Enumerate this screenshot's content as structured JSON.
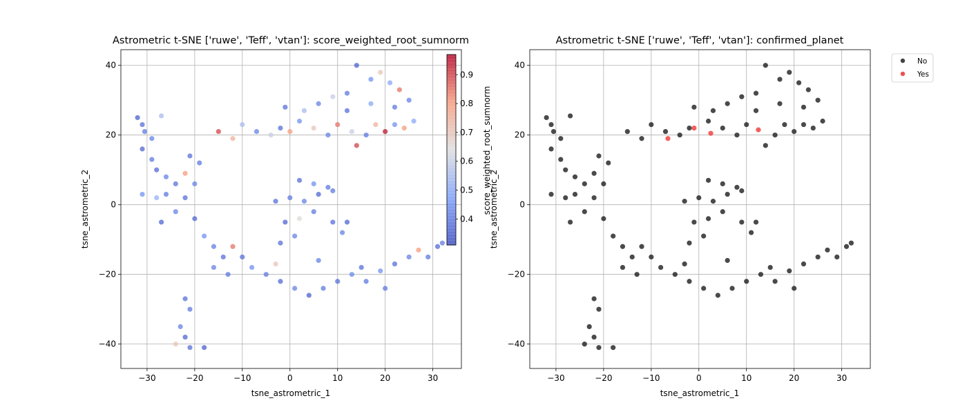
{
  "chart_data": [
    {
      "type": "scatter",
      "title": "Astrometric t-SNE ['ruwe', 'Teff', 'vtan']: score_weighted_root_sumnorm",
      "xlabel": "tsne_astrometric_1",
      "ylabel": "tsne_astrometric_2",
      "xlim": [
        -35.5,
        36
      ],
      "ylim": [
        -47,
        44.5
      ],
      "xticks": [
        -30,
        -20,
        -10,
        0,
        10,
        20,
        30
      ],
      "yticks": [
        -40,
        -20,
        0,
        20,
        40
      ],
      "grid": true,
      "colormap": "coolwarm",
      "color_label": "score_weighted_root_sumnorm",
      "color_range": [
        0.31,
        0.97
      ],
      "colorbar_ticks": [
        0.4,
        0.5,
        0.6,
        0.7,
        0.8,
        0.9
      ],
      "points": [
        [
          -32,
          25,
          0.35
        ],
        [
          -31,
          23,
          0.38
        ],
        [
          -30.5,
          21,
          0.4
        ],
        [
          -29,
          19,
          0.42
        ],
        [
          -27,
          25.5,
          0.55
        ],
        [
          -31,
          16,
          0.36
        ],
        [
          -29,
          13,
          0.4
        ],
        [
          -28,
          10,
          0.37
        ],
        [
          -26,
          8,
          0.42
        ],
        [
          -24,
          6,
          0.39
        ],
        [
          -22,
          9,
          0.8
        ],
        [
          -31,
          3,
          0.45
        ],
        [
          -28,
          2,
          0.52
        ],
        [
          -26,
          3,
          0.4
        ],
        [
          -22,
          2,
          0.38
        ],
        [
          -24,
          -2,
          0.42
        ],
        [
          -20,
          -4,
          0.36
        ],
        [
          -18,
          -9,
          0.45
        ],
        [
          -16,
          -12,
          0.41
        ],
        [
          -14,
          -15,
          0.38
        ],
        [
          -12,
          -12,
          0.85
        ],
        [
          -16,
          -18,
          0.42
        ],
        [
          -13,
          -20,
          0.4
        ],
        [
          -10,
          -15,
          0.38
        ],
        [
          -8,
          -18,
          0.45
        ],
        [
          -5,
          -20,
          0.4
        ],
        [
          -2,
          -22,
          0.37
        ],
        [
          1,
          -24,
          0.42
        ],
        [
          4,
          -26,
          0.35
        ],
        [
          7,
          -24,
          0.4
        ],
        [
          10,
          -22,
          0.38
        ],
        [
          13,
          -20,
          0.43
        ],
        [
          16,
          -22,
          0.4
        ],
        [
          19,
          -19,
          0.45
        ],
        [
          22,
          -17,
          0.38
        ],
        [
          25,
          -15,
          0.42
        ],
        [
          27,
          -13,
          0.8
        ],
        [
          29,
          -15,
          0.4
        ],
        [
          31,
          -12,
          0.37
        ],
        [
          32,
          -11,
          0.41
        ],
        [
          -22,
          -27,
          0.38
        ],
        [
          -21,
          -30,
          0.4
        ],
        [
          -23,
          -35,
          0.42
        ],
        [
          -22,
          -38,
          0.36
        ],
        [
          -24,
          -40,
          0.7
        ],
        [
          -21,
          -41,
          0.38
        ],
        [
          -18,
          -41,
          0.35
        ],
        [
          -15,
          21,
          0.9
        ],
        [
          -12,
          19,
          0.75
        ],
        [
          -10,
          23,
          0.55
        ],
        [
          -7,
          21,
          0.42
        ],
        [
          -4,
          20,
          0.6
        ],
        [
          -2,
          22,
          0.38
        ],
        [
          0,
          21,
          0.8
        ],
        [
          2,
          24,
          0.45
        ],
        [
          5,
          22,
          0.7
        ],
        [
          8,
          20,
          0.42
        ],
        [
          10,
          23,
          0.85
        ],
        [
          13,
          21,
          0.6
        ],
        [
          14,
          17,
          0.9
        ],
        [
          16,
          20,
          0.4
        ],
        [
          18,
          23,
          0.75
        ],
        [
          20,
          21,
          0.95
        ],
        [
          22,
          23,
          0.45
        ],
        [
          24,
          22,
          0.8
        ],
        [
          26,
          24,
          0.5
        ],
        [
          -1,
          28,
          0.38
        ],
        [
          3,
          27,
          0.55
        ],
        [
          6,
          29,
          0.42
        ],
        [
          9,
          31,
          0.6
        ],
        [
          12,
          32,
          0.4
        ],
        [
          14,
          40,
          0.35
        ],
        [
          17,
          36,
          0.45
        ],
        [
          19,
          38,
          0.7
        ],
        [
          21,
          35,
          0.5
        ],
        [
          23,
          33,
          0.85
        ],
        [
          25,
          30,
          0.42
        ],
        [
          12,
          27,
          0.38
        ],
        [
          17,
          29,
          0.5
        ],
        [
          22,
          28,
          0.4
        ],
        [
          -3,
          1,
          0.38
        ],
        [
          0,
          2,
          0.4
        ],
        [
          3,
          1,
          0.42
        ],
        [
          6,
          3,
          0.36
        ],
        [
          9,
          4,
          0.4
        ],
        [
          2,
          7,
          0.38
        ],
        [
          5,
          6,
          0.45
        ],
        [
          8,
          5,
          0.4
        ],
        [
          -1,
          -5,
          0.36
        ],
        [
          1,
          -9,
          0.42
        ],
        [
          -2,
          -11,
          0.38
        ],
        [
          2,
          -4,
          0.65
        ],
        [
          5,
          -2,
          0.4
        ],
        [
          9,
          -5,
          0.38
        ],
        [
          11,
          -8,
          0.42
        ],
        [
          12,
          -5,
          0.36
        ],
        [
          -20,
          6,
          0.42
        ],
        [
          -21,
          14,
          0.38
        ],
        [
          -19,
          12,
          0.4
        ],
        [
          -27,
          -5,
          0.36
        ],
        [
          -3,
          -17,
          0.7
        ],
        [
          6,
          -16,
          0.42
        ],
        [
          15,
          -18,
          0.38
        ],
        [
          20,
          -24,
          0.4
        ]
      ]
    },
    {
      "type": "scatter",
      "title": "Astrometric t-SNE ['ruwe', 'Teff', 'vtan']: confirmed_planet",
      "xlabel": "tsne_astrometric_1",
      "ylabel": "tsne_astrometric_2",
      "xlim": [
        -35.5,
        36
      ],
      "ylim": [
        -47,
        44.5
      ],
      "xticks": [
        -30,
        -20,
        -10,
        0,
        10,
        20,
        30
      ],
      "yticks": [
        -40,
        -20,
        0,
        20,
        40
      ],
      "grid": true,
      "legend_position": "upper right, outside",
      "series": [
        {
          "name": "No",
          "color": "#222222",
          "points": [
            [
              -32,
              25
            ],
            [
              -31,
              23
            ],
            [
              -30.5,
              21
            ],
            [
              -29,
              19
            ],
            [
              -27,
              25.5
            ],
            [
              -31,
              16
            ],
            [
              -29,
              13
            ],
            [
              -28,
              10
            ],
            [
              -26,
              8
            ],
            [
              -24,
              6
            ],
            [
              -22,
              9
            ],
            [
              -31,
              3
            ],
            [
              -28,
              2
            ],
            [
              -26,
              3
            ],
            [
              -22,
              2
            ],
            [
              -24,
              -2
            ],
            [
              -20,
              -4
            ],
            [
              -18,
              -9
            ],
            [
              -16,
              -12
            ],
            [
              -14,
              -15
            ],
            [
              -12,
              -12
            ],
            [
              -16,
              -18
            ],
            [
              -13,
              -20
            ],
            [
              -10,
              -15
            ],
            [
              -8,
              -18
            ],
            [
              -5,
              -20
            ],
            [
              -2,
              -22
            ],
            [
              1,
              -24
            ],
            [
              4,
              -26
            ],
            [
              7,
              -24
            ],
            [
              10,
              -22
            ],
            [
              13,
              -20
            ],
            [
              16,
              -22
            ],
            [
              19,
              -19
            ],
            [
              22,
              -17
            ],
            [
              25,
              -15
            ],
            [
              27,
              -13
            ],
            [
              29,
              -15
            ],
            [
              31,
              -12
            ],
            [
              32,
              -11
            ],
            [
              -22,
              -27
            ],
            [
              -21,
              -30
            ],
            [
              -23,
              -35
            ],
            [
              -22,
              -38
            ],
            [
              -24,
              -40
            ],
            [
              -21,
              -41
            ],
            [
              -18,
              -41
            ],
            [
              -15,
              21
            ],
            [
              -12,
              19
            ],
            [
              -10,
              23
            ],
            [
              -7,
              21
            ],
            [
              -4,
              20
            ],
            [
              -2,
              22
            ],
            [
              2,
              24
            ],
            [
              5,
              22
            ],
            [
              8,
              20
            ],
            [
              10,
              23
            ],
            [
              14,
              17
            ],
            [
              16,
              20
            ],
            [
              18,
              23
            ],
            [
              20,
              21
            ],
            [
              22,
              23
            ],
            [
              24,
              22
            ],
            [
              26,
              24
            ],
            [
              -1,
              28
            ],
            [
              3,
              27
            ],
            [
              6,
              29
            ],
            [
              9,
              31
            ],
            [
              12,
              32
            ],
            [
              14,
              40
            ],
            [
              17,
              36
            ],
            [
              19,
              38
            ],
            [
              21,
              35
            ],
            [
              23,
              33
            ],
            [
              25,
              30
            ],
            [
              12,
              27
            ],
            [
              17,
              29
            ],
            [
              22,
              28
            ],
            [
              -3,
              1
            ],
            [
              0,
              2
            ],
            [
              3,
              1
            ],
            [
              6,
              3
            ],
            [
              9,
              4
            ],
            [
              2,
              7
            ],
            [
              5,
              6
            ],
            [
              8,
              5
            ],
            [
              -1,
              -5
            ],
            [
              1,
              -9
            ],
            [
              -2,
              -11
            ],
            [
              2,
              -4
            ],
            [
              5,
              -2
            ],
            [
              9,
              -5
            ],
            [
              11,
              -8
            ],
            [
              12,
              -5
            ],
            [
              -20,
              6
            ],
            [
              -21,
              14
            ],
            [
              -19,
              12
            ],
            [
              -27,
              -5
            ],
            [
              -3,
              -17
            ],
            [
              6,
              -16
            ],
            [
              15,
              -18
            ],
            [
              20,
              -24
            ]
          ]
        },
        {
          "name": "Yes",
          "color": "#f03c3c",
          "points": [
            [
              -6.5,
              19
            ],
            [
              -1,
              22
            ],
            [
              2.5,
              20.5
            ],
            [
              12.5,
              21.5
            ]
          ]
        }
      ]
    }
  ]
}
